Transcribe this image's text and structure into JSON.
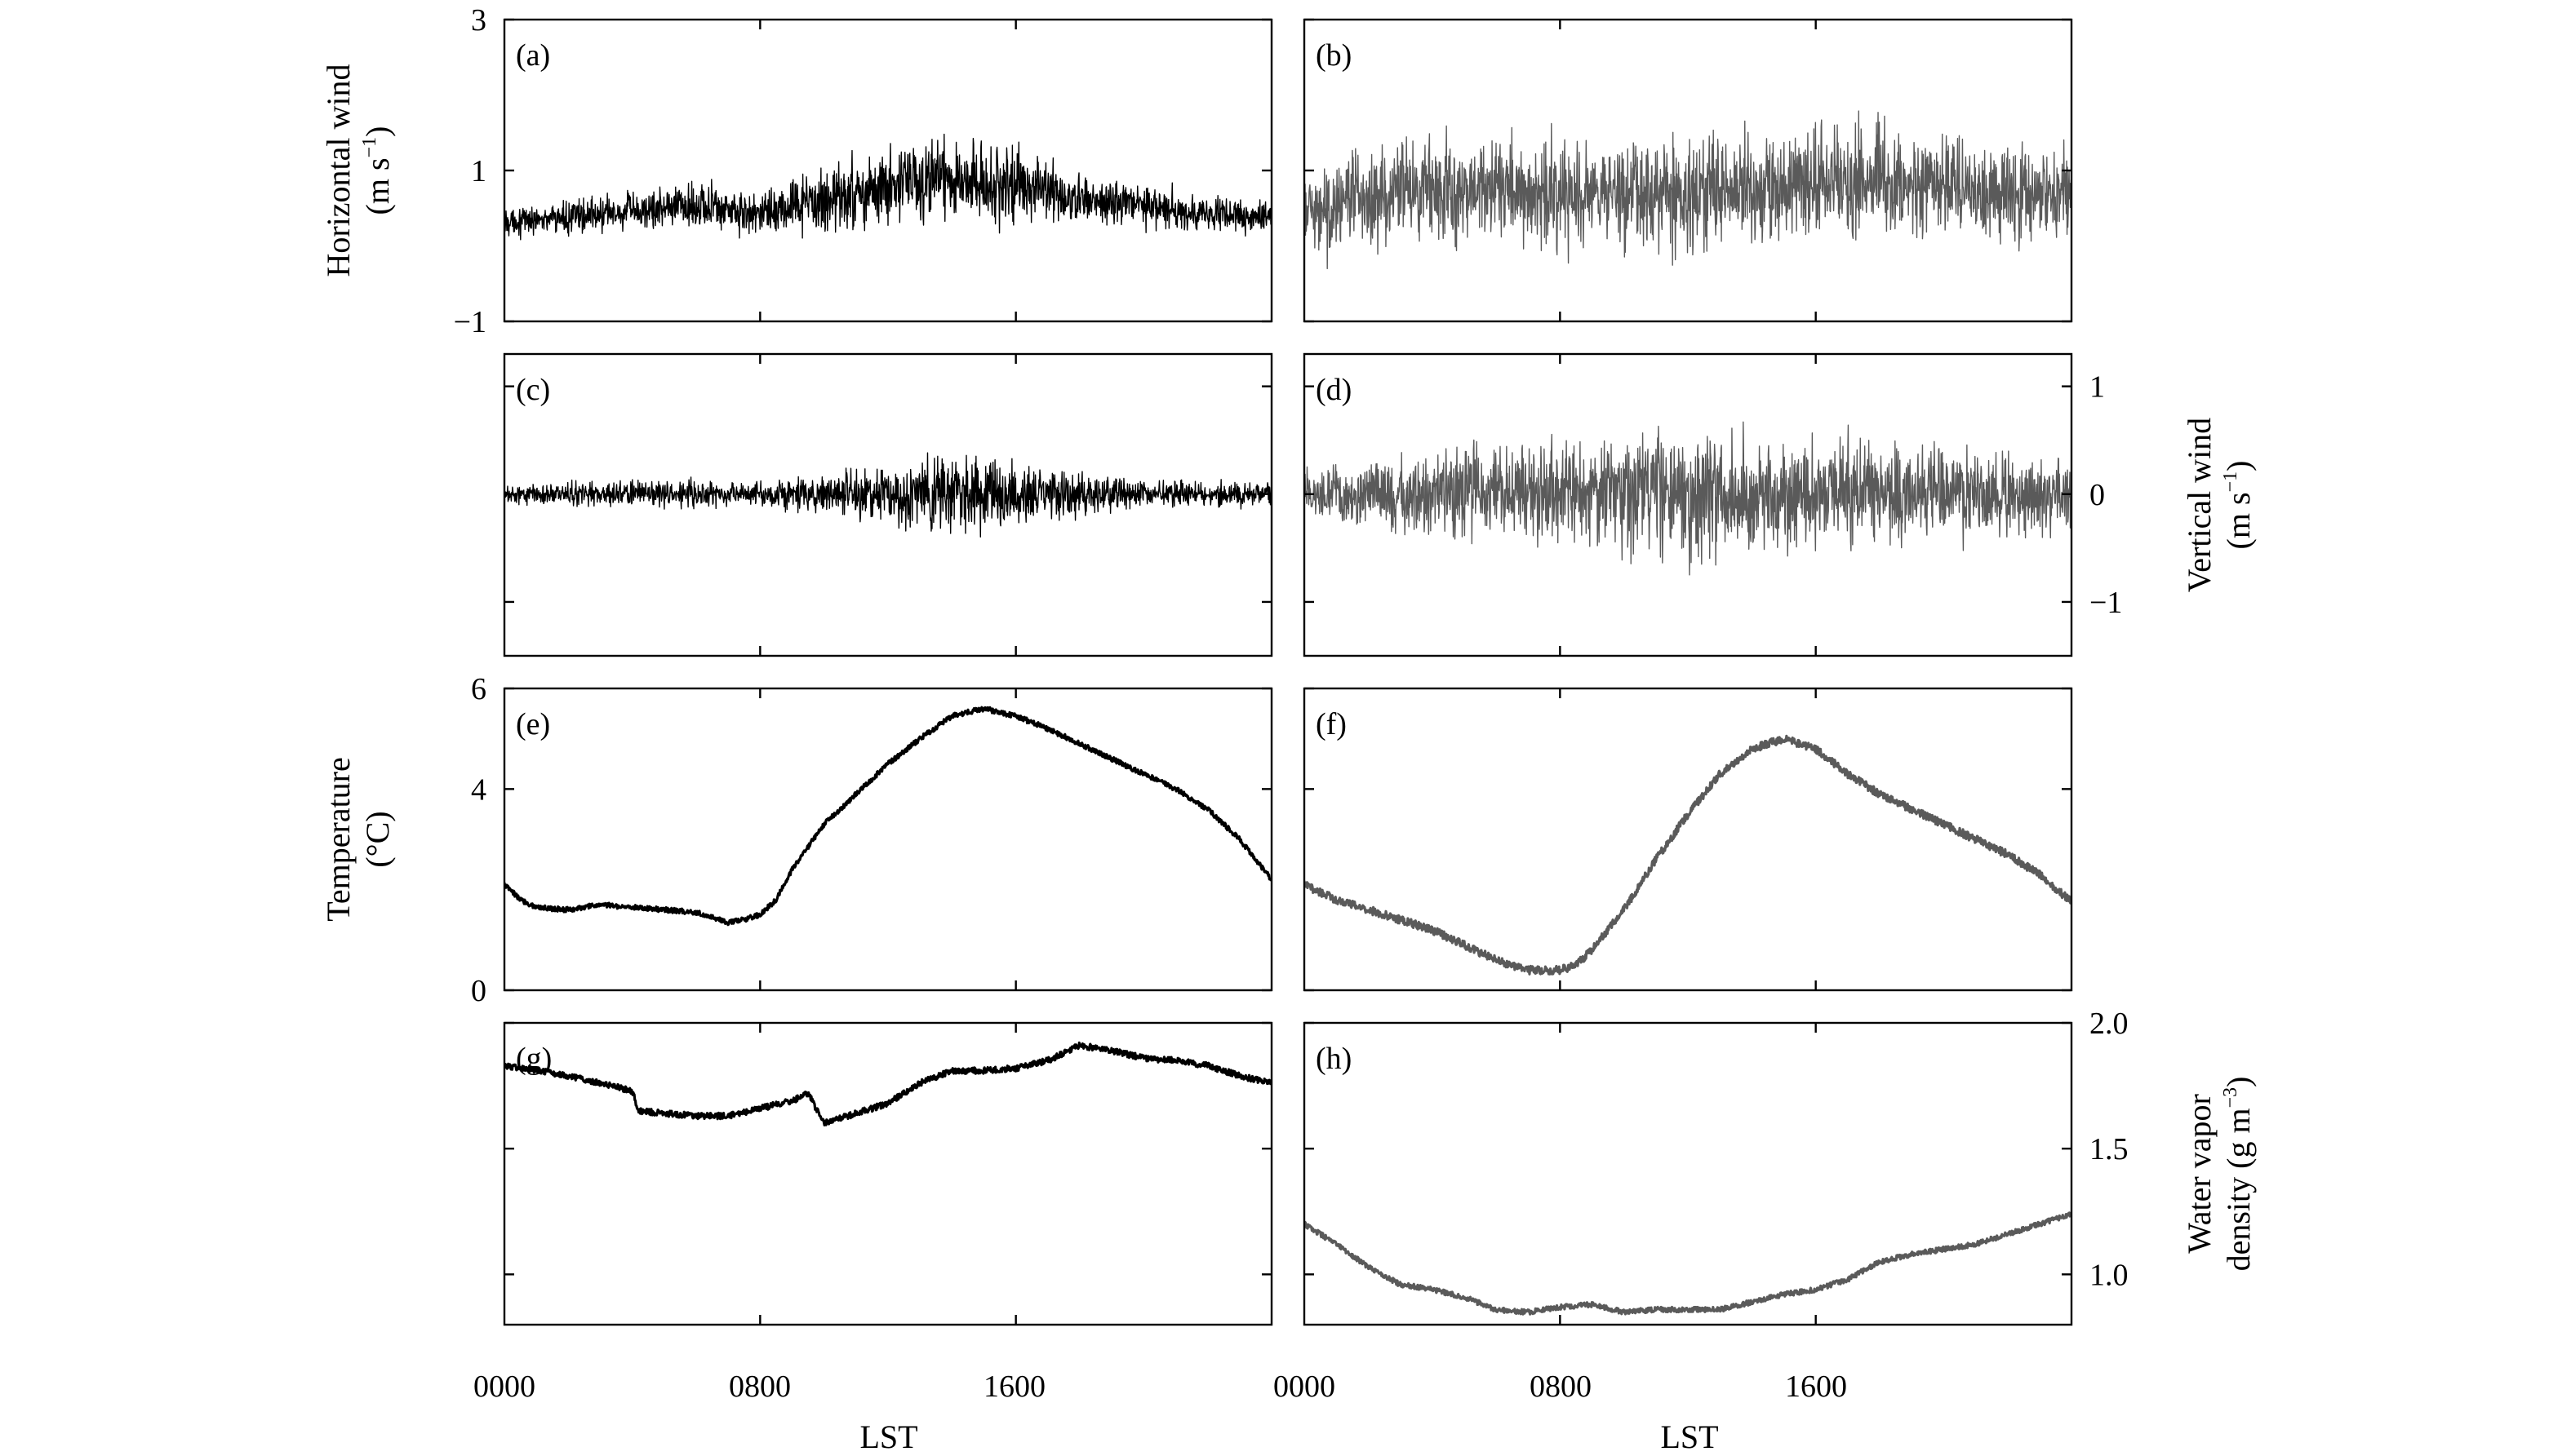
{
  "figure": {
    "xlabel": "LST",
    "x_tick_labels": [
      "0000",
      "0800",
      "1600"
    ]
  },
  "chart_data": [
    {
      "panel": "(a)",
      "type": "line",
      "color": "#000000",
      "ylim": [
        -1,
        3
      ],
      "yticks": [
        -1,
        1,
        3
      ],
      "show_y_labels": true,
      "y_labels_side": "left",
      "ylabel": [
        "Horizontal wind",
        "(m s",
        "−1",
        ")"
      ],
      "xlim": [
        0,
        24
      ],
      "xticks": [
        0,
        8,
        16
      ],
      "series": [
        {
          "style": "noise",
          "x": [
            0,
            2,
            4,
            6,
            8,
            10,
            12,
            14,
            16,
            18,
            20,
            22,
            24
          ],
          "mean": [
            0.32,
            0.38,
            0.45,
            0.55,
            0.42,
            0.6,
            0.8,
            0.88,
            0.82,
            0.62,
            0.5,
            0.42,
            0.38
          ],
          "amplitude": [
            0.25,
            0.28,
            0.35,
            0.42,
            0.4,
            0.55,
            0.7,
            0.75,
            0.62,
            0.48,
            0.4,
            0.3,
            0.28
          ]
        }
      ]
    },
    {
      "panel": "(b)",
      "type": "line",
      "color": "#5a5a5a",
      "ylim": [
        -1,
        3
      ],
      "yticks": [
        -1,
        1,
        3
      ],
      "show_y_labels": false,
      "xlim": [
        0,
        24
      ],
      "xticks": [
        0,
        8,
        16
      ],
      "series": [
        {
          "style": "noise",
          "x": [
            0,
            2,
            4,
            6,
            8,
            10,
            12,
            14,
            16,
            18,
            20,
            22,
            24
          ],
          "mean": [
            0.45,
            0.65,
            0.72,
            0.75,
            0.72,
            0.68,
            0.7,
            0.78,
            0.85,
            0.85,
            0.8,
            0.72,
            0.7
          ],
          "amplitude": [
            0.7,
            0.95,
            1.0,
            1.0,
            1.0,
            1.0,
            1.05,
            1.05,
            1.1,
            1.05,
            0.95,
            0.85,
            0.8
          ]
        }
      ]
    },
    {
      "panel": "(c)",
      "type": "line",
      "color": "#000000",
      "ylim": [
        -1.5,
        1.3
      ],
      "yticks": [
        -1,
        0,
        1
      ],
      "show_y_labels": false,
      "xlim": [
        0,
        24
      ],
      "xticks": [
        0,
        8,
        16
      ],
      "series": [
        {
          "style": "noise",
          "x": [
            0,
            2,
            4,
            6,
            8,
            10,
            12,
            14,
            16,
            18,
            20,
            22,
            24
          ],
          "mean": [
            0,
            0,
            0,
            0,
            0,
            0,
            0,
            0,
            0,
            0,
            0,
            0,
            0
          ],
          "amplitude": [
            0.12,
            0.14,
            0.18,
            0.2,
            0.15,
            0.25,
            0.4,
            0.48,
            0.4,
            0.28,
            0.2,
            0.16,
            0.14
          ]
        }
      ]
    },
    {
      "panel": "(d)",
      "type": "line",
      "color": "#5a5a5a",
      "ylim": [
        -1.5,
        1.3
      ],
      "yticks": [
        -1,
        0,
        1
      ],
      "show_y_labels": true,
      "y_labels_side": "right",
      "ylabel": [
        "Vertical wind",
        "(m s",
        "−1",
        ")"
      ],
      "xlim": [
        0,
        24
      ],
      "xticks": [
        0,
        8,
        16
      ],
      "series": [
        {
          "style": "noise",
          "x": [
            0,
            2,
            4,
            6,
            8,
            10,
            12,
            14,
            16,
            18,
            20,
            22,
            24
          ],
          "mean": [
            0,
            0,
            0,
            0,
            0,
            0,
            0,
            0,
            0,
            0,
            0,
            0,
            0
          ],
          "amplitude": [
            0.35,
            0.45,
            0.55,
            0.6,
            0.65,
            0.75,
            0.82,
            0.8,
            0.72,
            0.68,
            0.62,
            0.55,
            0.48
          ]
        }
      ]
    },
    {
      "panel": "(e)",
      "type": "line",
      "color": "#000000",
      "ylim": [
        0,
        6
      ],
      "yticks": [
        0,
        4,
        6
      ],
      "show_y_labels": true,
      "y_labels_side": "left",
      "ylabel": [
        "Temperature",
        "(°C)"
      ],
      "xlim": [
        0,
        24
      ],
      "xticks": [
        0,
        8,
        16
      ],
      "series": [
        {
          "style": "smooth",
          "amplitude": 0.05,
          "x": [
            0,
            0.5,
            1,
            2,
            3,
            4,
            5,
            6,
            7,
            7.5,
            8,
            8.5,
            9,
            10,
            11,
            12,
            13,
            14,
            15,
            16,
            17,
            18,
            19,
            20,
            21,
            22,
            23,
            24
          ],
          "values": [
            2.1,
            1.8,
            1.65,
            1.6,
            1.7,
            1.65,
            1.6,
            1.55,
            1.35,
            1.4,
            1.5,
            1.8,
            2.4,
            3.3,
            3.9,
            4.5,
            5.0,
            5.45,
            5.6,
            5.45,
            5.2,
            4.9,
            4.6,
            4.3,
            4.0,
            3.6,
            3.0,
            2.2
          ]
        }
      ]
    },
    {
      "panel": "(f)",
      "type": "line",
      "color": "#5a5a5a",
      "ylim": [
        0,
        6
      ],
      "yticks": [
        0,
        4,
        6
      ],
      "show_y_labels": false,
      "xlim": [
        0,
        24
      ],
      "xticks": [
        0,
        8,
        16
      ],
      "series": [
        {
          "style": "smooth",
          "amplitude": 0.08,
          "x": [
            0,
            1,
            2,
            3,
            4,
            5,
            6,
            7,
            8,
            8.5,
            9,
            10,
            11,
            12,
            13,
            14,
            15,
            16,
            17,
            18,
            19,
            20,
            21,
            22,
            23,
            24
          ],
          "values": [
            2.1,
            1.8,
            1.6,
            1.4,
            1.2,
            0.9,
            0.6,
            0.4,
            0.4,
            0.5,
            0.8,
            1.6,
            2.6,
            3.5,
            4.3,
            4.8,
            5.0,
            4.8,
            4.3,
            3.9,
            3.6,
            3.3,
            3.0,
            2.7,
            2.3,
            1.75
          ]
        }
      ]
    },
    {
      "panel": "(g)",
      "type": "line",
      "color": "#000000",
      "ylim": [
        0.8,
        2.0
      ],
      "yticks": [
        1.0,
        1.5,
        2.0
      ],
      "show_y_labels": false,
      "xlim": [
        0,
        24
      ],
      "xticks": [
        0,
        8,
        16
      ],
      "series": [
        {
          "style": "smooth",
          "amplitude": 0.012,
          "x": [
            0,
            2,
            3,
            4,
            4.2,
            6,
            7,
            8,
            9,
            9.5,
            10,
            11,
            12,
            13,
            14,
            15,
            16,
            17,
            18,
            19,
            20,
            21,
            22,
            23,
            24
          ],
          "values": [
            1.83,
            1.79,
            1.76,
            1.73,
            1.65,
            1.63,
            1.63,
            1.66,
            1.69,
            1.72,
            1.6,
            1.64,
            1.68,
            1.76,
            1.81,
            1.81,
            1.82,
            1.85,
            1.91,
            1.89,
            1.86,
            1.85,
            1.83,
            1.79,
            1.76
          ]
        }
      ]
    },
    {
      "panel": "(h)",
      "type": "line",
      "color": "#5a5a5a",
      "ylim": [
        0.8,
        2.0
      ],
      "yticks": [
        1.0,
        1.5,
        2.0
      ],
      "show_y_labels": true,
      "y_labels_side": "right",
      "ylabel": [
        "Water vapor",
        "density (g m",
        "−3",
        ")"
      ],
      "xlim": [
        0,
        24
      ],
      "xticks": [
        0,
        8,
        16
      ],
      "series": [
        {
          "style": "smooth",
          "amplitude": 0.01,
          "x": [
            0,
            1,
            2,
            3,
            4,
            5,
            6,
            7,
            8,
            9,
            10,
            11,
            12,
            13,
            14,
            15,
            16,
            17,
            18,
            19,
            20,
            21,
            22,
            23,
            24
          ],
          "values": [
            1.2,
            1.12,
            1.03,
            0.96,
            0.94,
            0.91,
            0.86,
            0.85,
            0.87,
            0.88,
            0.85,
            0.86,
            0.86,
            0.86,
            0.89,
            0.92,
            0.94,
            0.98,
            1.05,
            1.08,
            1.1,
            1.12,
            1.16,
            1.2,
            1.24
          ]
        }
      ]
    }
  ]
}
